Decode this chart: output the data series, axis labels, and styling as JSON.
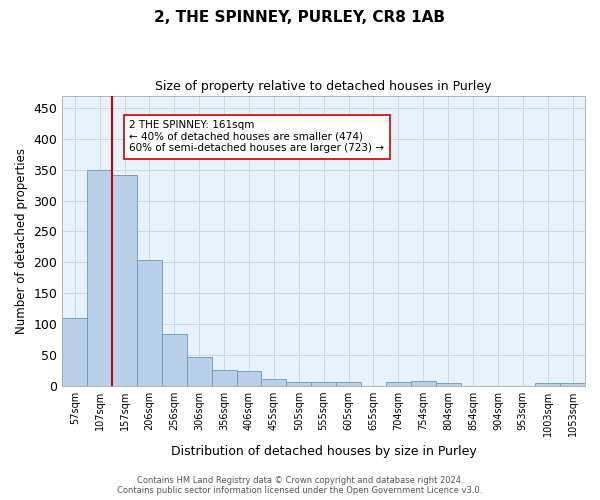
{
  "title": "2, THE SPINNEY, PURLEY, CR8 1AB",
  "subtitle": "Size of property relative to detached houses in Purley",
  "xlabel": "Distribution of detached houses by size in Purley",
  "ylabel": "Number of detached properties",
  "footnote1": "Contains HM Land Registry data © Crown copyright and database right 2024.",
  "footnote2": "Contains public sector information licensed under the Open Government Licence v3.0.",
  "bin_labels": [
    "57sqm",
    "107sqm",
    "157sqm",
    "206sqm",
    "256sqm",
    "306sqm",
    "356sqm",
    "406sqm",
    "455sqm",
    "505sqm",
    "555sqm",
    "605sqm",
    "655sqm",
    "704sqm",
    "754sqm",
    "804sqm",
    "854sqm",
    "904sqm",
    "953sqm",
    "1003sqm",
    "1053sqm"
  ],
  "bar_heights": [
    110,
    349,
    342,
    204,
    84,
    47,
    25,
    24,
    11,
    7,
    7,
    6,
    0,
    6,
    8,
    4,
    0,
    0,
    0,
    4,
    4
  ],
  "bar_color": "#b8d0e8",
  "bar_edge_color": "#6699bb",
  "bar_edge_width": 0.6,
  "bg_color": "#e8f2fa",
  "grid_color": "#c8d8e8",
  "property_line_color": "#cc0000",
  "annotation_text": "2 THE SPINNEY: 161sqm\n← 40% of detached houses are smaller (474)\n60% of semi-detached houses are larger (723) →",
  "annotation_box_color": "#ffffff",
  "annotation_box_edge_color": "#cc0000",
  "ylim": [
    0,
    470
  ],
  "yticks": [
    0,
    50,
    100,
    150,
    200,
    250,
    300,
    350,
    400,
    450
  ]
}
